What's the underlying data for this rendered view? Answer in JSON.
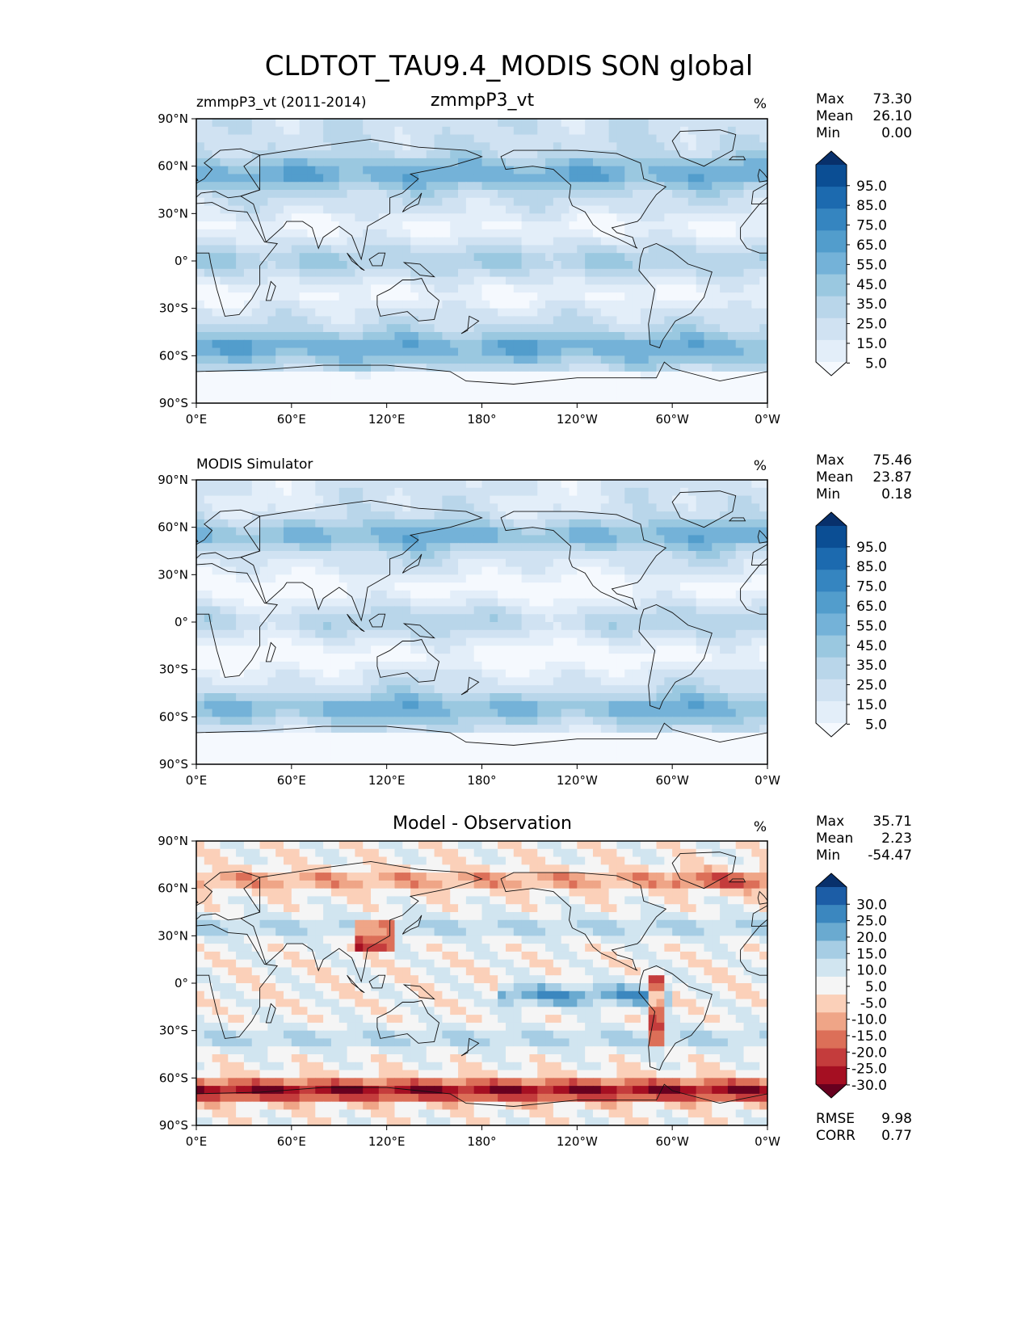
{
  "chart_data": {
    "type": "heatmap",
    "title": "CLDTOT_TAU9.4_MODIS SON global",
    "x_ticks": [
      "0°E",
      "60°E",
      "120°E",
      "180°",
      "120°W",
      "60°W",
      "0°W"
    ],
    "y_ticks": [
      "90°N",
      "60°N",
      "30°N",
      "0°",
      "30°S",
      "60°S",
      "90°S"
    ],
    "panels": [
      {
        "left_title": "zmmpP3_vt (2011-2014)",
        "center_title": "zmmpP3_vt",
        "units": "%",
        "stats": [
          {
            "label": "Max",
            "value": "73.30"
          },
          {
            "label": "Mean",
            "value": "26.10"
          },
          {
            "label": "Min",
            "value": "0.00"
          }
        ],
        "colorbar_labels": [
          "95.0",
          "85.0",
          "75.0",
          "65.0",
          "55.0",
          "45.0",
          "35.0",
          "25.0",
          "15.0",
          "5.0"
        ],
        "colors": [
          "#f5f9fe",
          "#e3eef9",
          "#d0e2f2",
          "#b9d6ea",
          "#9ac8e0",
          "#74b2d8",
          "#529dcc",
          "#3585c0",
          "#1c6aaf",
          "#0b4e94",
          "#08306b"
        ],
        "mean_level": 3
      },
      {
        "left_title": "MODIS Simulator",
        "center_title": "",
        "units": "%",
        "stats": [
          {
            "label": "Max",
            "value": "75.46"
          },
          {
            "label": "Mean",
            "value": "23.87"
          },
          {
            "label": "Min",
            "value": "0.18"
          }
        ],
        "colorbar_labels": [
          "95.0",
          "85.0",
          "75.0",
          "65.0",
          "55.0",
          "45.0",
          "35.0",
          "25.0",
          "15.0",
          "5.0"
        ],
        "colors": [
          "#f5f9fe",
          "#e3eef9",
          "#d0e2f2",
          "#b9d6ea",
          "#9ac8e0",
          "#74b2d8",
          "#529dcc",
          "#3585c0",
          "#1c6aaf",
          "#0b4e94",
          "#08306b"
        ],
        "mean_level": 2
      },
      {
        "left_title": "",
        "center_title": "Model - Observation",
        "units": "%",
        "stats": [
          {
            "label": "Max",
            "value": "35.71"
          },
          {
            "label": "Mean",
            "value": "2.23"
          },
          {
            "label": "Min",
            "value": "-54.47"
          }
        ],
        "colorbar_labels": [
          "30.0",
          "25.0",
          "20.0",
          "15.0",
          "10.0",
          "5.0",
          "-5.0",
          "-10.0",
          "-15.0",
          "-20.0",
          "-25.0",
          "-30.0"
        ],
        "colors": [
          "#67001f",
          "#a50f22",
          "#c43c3c",
          "#dc6f58",
          "#efa587",
          "#fbd0b9",
          "#f5f5f5",
          "#d1e5f0",
          "#a6cde4",
          "#6aaad0",
          "#3b87bf",
          "#1c5da6",
          "#08306b"
        ],
        "bottom_stats": [
          {
            "label": "RMSE",
            "value": "9.98"
          },
          {
            "label": "CORR",
            "value": "0.77"
          }
        ]
      }
    ]
  }
}
